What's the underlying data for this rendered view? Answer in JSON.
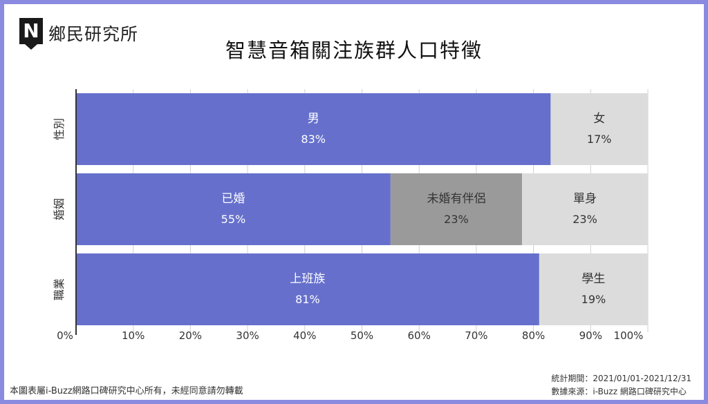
{
  "brand": {
    "logo_letter": "N",
    "name": "鄉民研究所"
  },
  "chart_data": {
    "type": "bar",
    "orientation": "horizontal",
    "stacked": true,
    "percent": true,
    "title": "智慧音箱關注族群人口特徵",
    "xlim": [
      0,
      100
    ],
    "x_ticks": [
      "0%",
      "10%",
      "20%",
      "30%",
      "40%",
      "50%",
      "60%",
      "70%",
      "80%",
      "90%",
      "100%"
    ],
    "grid": "vertical",
    "categories": [
      {
        "label": "性別",
        "segments": [
          {
            "label": "男",
            "value": 83,
            "value_label": "83%",
            "color": "#6670cc"
          },
          {
            "label": "女",
            "value": 17,
            "value_label": "17%",
            "color": "#dcdcdc"
          }
        ]
      },
      {
        "label": "婚姻",
        "segments": [
          {
            "label": "已婚",
            "value": 55,
            "value_label": "55%",
            "color": "#6670cc"
          },
          {
            "label": "未婚有伴侶",
            "value": 23,
            "value_label": "23%",
            "color": "#9a9a9a"
          },
          {
            "label": "單身",
            "value": 23,
            "value_label": "23%",
            "color": "#dcdcdc"
          }
        ]
      },
      {
        "label": "職業",
        "segments": [
          {
            "label": "上班族",
            "value": 81,
            "value_label": "81%",
            "color": "#6670cc"
          },
          {
            "label": "學生",
            "value": 19,
            "value_label": "19%",
            "color": "#dcdcdc"
          }
        ]
      }
    ]
  },
  "footer": {
    "copyright": "本圖表屬i-Buzz網路口碑研究中心所有，未經同意請勿轉載",
    "period": "統計期間：2021/01/01-2021/12/31",
    "source": "數據來源：i-Buzz 網路口碑研究中心"
  },
  "colors": {
    "frame": "#8a8ae0",
    "accent": "#6670cc",
    "mid": "#9a9a9a",
    "light": "#dcdcdc"
  }
}
